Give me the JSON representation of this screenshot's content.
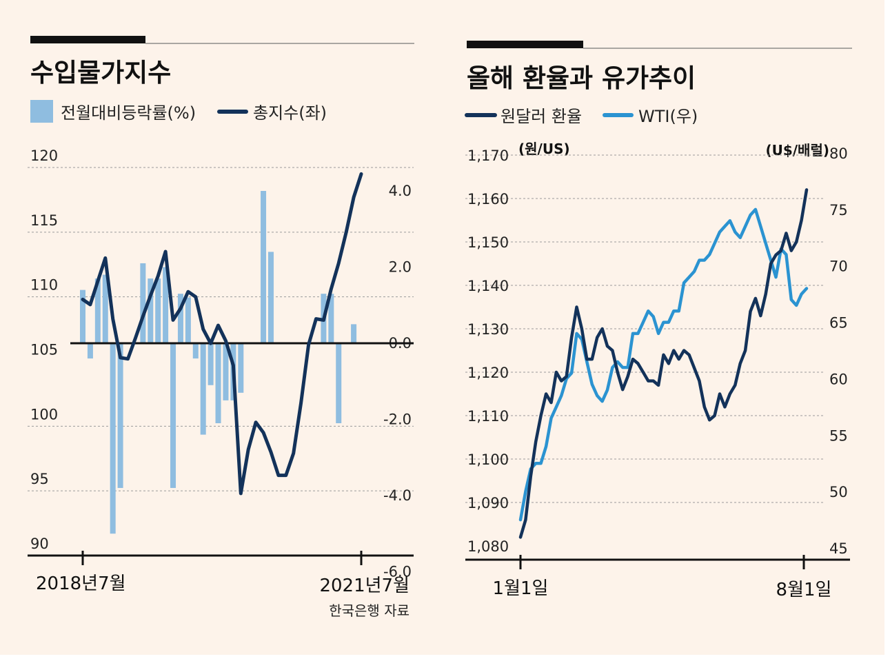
{
  "colors": {
    "background": "#fdf3ea",
    "bar": "#8fbde0",
    "navy": "#13325a",
    "wti": "#2b93d1",
    "grid": "#9a9a9a",
    "axis": "#111111"
  },
  "chart_data": [
    {
      "type": "bar+line",
      "title": "수입물가지수",
      "legend": [
        {
          "label": "전월대비등락률(%)",
          "icon": "bar-swatch-icon"
        },
        {
          "label": "총지수(좌)",
          "icon": "line-swatch-icon"
        }
      ],
      "x_labels": {
        "start": "2018년7월",
        "end": "2021년7월"
      },
      "source": "한국은행 자료",
      "left_axis": {
        "ticks": [
          "120",
          "115",
          "110",
          "105",
          "100",
          "95",
          "90"
        ],
        "range": [
          90,
          120
        ]
      },
      "right_axis": {
        "ticks": [
          "4.0",
          "2.0",
          "0.0",
          "-2.0",
          "-4.0",
          "-6.0"
        ],
        "range": [
          -6,
          4
        ]
      },
      "bar_series": {
        "name": "전월대비등락률(%)",
        "values": [
          1.4,
          -0.4,
          1.7,
          1.8,
          -5.0,
          -3.8,
          0,
          0,
          2.1,
          1.7,
          1.7,
          2.0,
          -3.8,
          1.3,
          1.2,
          -0.4,
          -2.4,
          -1.1,
          -2.1,
          -1.5,
          -1.5,
          -1.3,
          0,
          0,
          4.0,
          2.4,
          0,
          0,
          0,
          0,
          0,
          0,
          1.3,
          1.3,
          -2.1,
          0,
          0.5,
          0
        ]
      },
      "line_series": {
        "name": "총지수(좌)",
        "values": [
          109.8,
          109.4,
          111.2,
          113.0,
          108.3,
          105.3,
          105.2,
          106.8,
          108.5,
          110.1,
          111.6,
          113.5,
          108.2,
          109.1,
          110.4,
          110.0,
          107.5,
          106.4,
          107.8,
          106.6,
          104.7,
          94.8,
          98.2,
          100.3,
          99.5,
          98.0,
          96.2,
          96.2,
          97.9,
          101.8,
          106.3,
          108.3,
          108.2,
          110.6,
          112.6,
          115.0,
          117.7,
          119.5
        ]
      }
    },
    {
      "type": "line",
      "title": "올해 환율과 유가추이",
      "legend": [
        {
          "label": "원달러 환율",
          "icon": "navy-line-icon"
        },
        {
          "label": "WTI(우)",
          "icon": "blue-line-icon"
        }
      ],
      "x_labels": {
        "start": "1월1일",
        "end": "8월1일"
      },
      "left_axis": {
        "unit": "(원/US)",
        "ticks": [
          "1,170",
          "1,160",
          "1,150",
          "1,140",
          "1,130",
          "1,120",
          "1,110",
          "1,100",
          "1,090",
          "1,080"
        ],
        "range": [
          1080,
          1170
        ]
      },
      "right_axis": {
        "unit": "(U$/배럴)",
        "ticks": [
          "80",
          "75",
          "70",
          "65",
          "60",
          "55",
          "50",
          "45"
        ],
        "range": [
          45,
          80
        ]
      },
      "series": [
        {
          "name": "원달러 환율",
          "values": [
            1082,
            1086,
            1096,
            1104,
            1110,
            1115,
            1113,
            1120,
            1118,
            1119,
            1128,
            1135,
            1130,
            1123,
            1123,
            1128,
            1130,
            1126,
            1125,
            1120,
            1116,
            1119,
            1123,
            1122,
            1120,
            1118,
            1118,
            1117,
            1124,
            1122,
            1125,
            1123,
            1125,
            1124,
            1121,
            1118,
            1112,
            1109,
            1110,
            1115,
            1112,
            1115,
            1117,
            1122,
            1125,
            1134,
            1137,
            1133,
            1138,
            1145,
            1147,
            1148,
            1152,
            1148,
            1150,
            1155,
            1162
          ]
        },
        {
          "name": "WTI(우)",
          "values": [
            47.5,
            50.0,
            52.0,
            52.5,
            52.5,
            54.0,
            56.5,
            57.5,
            58.5,
            60.0,
            60.5,
            64.0,
            63.5,
            61.5,
            59.5,
            58.5,
            58.0,
            59.0,
            61.0,
            61.5,
            61.0,
            61.0,
            64.0,
            64.0,
            65.0,
            66.0,
            65.5,
            64.0,
            65.0,
            65.0,
            66.0,
            66.0,
            68.5,
            69.0,
            69.5,
            70.5,
            70.5,
            71.0,
            72.0,
            73.0,
            73.5,
            74.0,
            73.0,
            72.5,
            73.5,
            74.5,
            75.0,
            73.5,
            72.0,
            70.5,
            69.0,
            71.5,
            71.0,
            67.0,
            66.5,
            67.5,
            68.0
          ]
        }
      ]
    }
  ]
}
